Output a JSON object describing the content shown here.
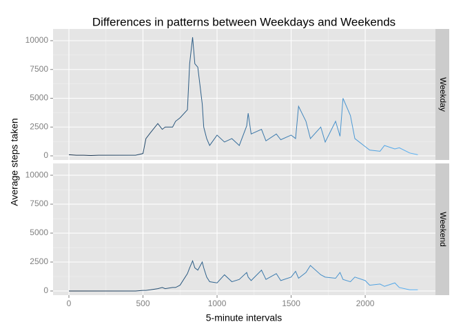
{
  "chart_data": {
    "type": "line",
    "title": "Differences in patterns between Weekdays and Weekends",
    "xlabel": "5-minute intervals",
    "ylabel": "Average steps taken",
    "x": [
      0,
      50,
      100,
      150,
      200,
      250,
      300,
      350,
      400,
      450,
      500,
      520,
      550,
      600,
      630,
      650,
      700,
      720,
      750,
      800,
      815,
      835,
      850,
      870,
      900,
      910,
      930,
      950,
      1000,
      1050,
      1100,
      1150,
      1200,
      1210,
      1230,
      1300,
      1330,
      1400,
      1430,
      1500,
      1530,
      1550,
      1600,
      1630,
      1700,
      1730,
      1800,
      1830,
      1850,
      1900,
      1930,
      2000,
      2030,
      2100,
      2130,
      2200,
      2230,
      2300,
      2355
    ],
    "series": [
      {
        "name": "Weekday",
        "values": [
          100,
          50,
          50,
          30,
          50,
          50,
          50,
          50,
          50,
          50,
          200,
          1500,
          2000,
          2800,
          2300,
          2500,
          2500,
          3000,
          3300,
          4000,
          8000,
          10300,
          8000,
          7700,
          4500,
          2500,
          1500,
          900,
          1800,
          1200,
          1500,
          900,
          2600,
          3700,
          1900,
          2300,
          1300,
          1900,
          1400,
          1800,
          1500,
          4300,
          3000,
          1500,
          2500,
          1200,
          3000,
          1700,
          5000,
          3500,
          1500,
          800,
          500,
          400,
          900,
          600,
          700,
          250,
          100
        ]
      },
      {
        "name": "Weekend",
        "values": [
          0,
          0,
          0,
          0,
          0,
          0,
          0,
          0,
          0,
          0,
          50,
          50,
          100,
          200,
          300,
          200,
          300,
          300,
          500,
          1500,
          2000,
          2600,
          2000,
          1800,
          2500,
          2000,
          1200,
          800,
          700,
          1400,
          800,
          1000,
          1600,
          1200,
          900,
          1800,
          1000,
          1500,
          900,
          1200,
          1700,
          1100,
          1600,
          2200,
          1400,
          1200,
          1100,
          1600,
          1000,
          800,
          1200,
          900,
          500,
          600,
          400,
          700,
          300,
          100,
          100
        ]
      }
    ],
    "color_low": "#132B43",
    "color_high": "#56B1F7",
    "xlim": [
      -107,
      2474
    ],
    "xticks": [
      0,
      500,
      1000,
      1500,
      2000
    ],
    "ylim": [
      -359,
      11018
    ],
    "yticks": [
      0,
      2500,
      5000,
      7500,
      10000
    ],
    "grid": true
  }
}
